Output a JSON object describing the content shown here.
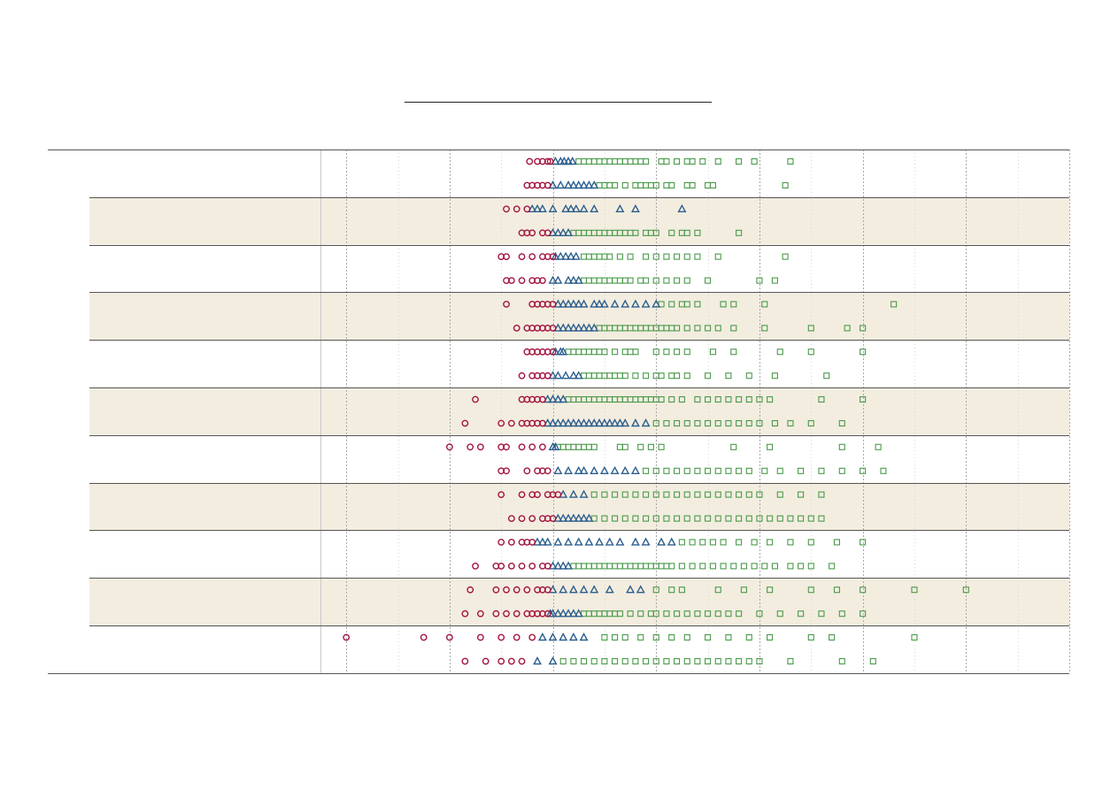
{
  "chart_data": {
    "type": "scatter",
    "title": "",
    "xlabel": "",
    "ylabel": "",
    "xlim": [
      -4.5,
      10
    ],
    "x_grid_major": [
      -4,
      -2,
      0,
      2,
      4,
      6,
      8,
      10
    ],
    "x_grid_minor": [
      -3,
      -1,
      1,
      3,
      5,
      7,
      9
    ],
    "grid": true,
    "legend": "none",
    "colors": {
      "circle": "#a3133d",
      "triangle": "#2c5f8e",
      "square": "#4a9a4a",
      "band": "#f3ede0",
      "grid": "#a8a8a8"
    },
    "group_names": [
      "",
      "",
      "",
      "",
      "",
      "",
      "",
      "",
      "",
      "",
      ""
    ],
    "groups": [
      {
        "row_labels": [
          "",
          ""
        ],
        "rows": [
          {
            "circle": [
              -0.45,
              -0.3,
              -0.2,
              -0.1,
              -0.05
            ],
            "triangle": [
              0.05,
              0.15,
              0.22,
              0.3,
              0.38
            ],
            "square": [
              0.5,
              0.6,
              0.7,
              0.8,
              0.9,
              1.0,
              1.1,
              1.2,
              1.3,
              1.4,
              1.5,
              1.6,
              1.7,
              1.8,
              2.1,
              2.2,
              2.4,
              2.6,
              2.7,
              2.9,
              3.2,
              3.6,
              3.9,
              4.6
            ]
          },
          {
            "circle": [
              -0.5,
              -0.4,
              -0.3,
              -0.2,
              -0.1
            ],
            "triangle": [
              0.0,
              0.15,
              0.3,
              0.4,
              0.5,
              0.6,
              0.7,
              0.8
            ],
            "square": [
              0.9,
              1.0,
              1.1,
              1.2,
              1.4,
              1.6,
              1.7,
              1.8,
              1.9,
              2.0,
              2.2,
              2.3,
              2.6,
              2.7,
              3.0,
              3.1,
              4.5
            ]
          }
        ]
      },
      {
        "row_labels": [
          "",
          ""
        ],
        "rows": [
          {
            "circle": [
              -0.9,
              -0.7,
              -0.5
            ],
            "triangle": [
              -0.4,
              -0.3,
              -0.2,
              0.0,
              0.25,
              0.35,
              0.45,
              0.6,
              0.8,
              1.3,
              1.6,
              2.5
            ],
            "square": []
          },
          {
            "circle": [
              -0.6,
              -0.5,
              -0.4,
              -0.2,
              -0.1
            ],
            "triangle": [
              0.0,
              0.1,
              0.2,
              0.3
            ],
            "square": [
              0.4,
              0.5,
              0.6,
              0.7,
              0.8,
              0.9,
              1.0,
              1.1,
              1.2,
              1.3,
              1.4,
              1.5,
              1.6,
              1.8,
              1.9,
              2.0,
              2.3,
              2.5,
              2.6,
              2.8,
              3.6
            ]
          }
        ]
      },
      {
        "row_labels": [
          "",
          ""
        ],
        "rows": [
          {
            "circle": [
              -1.0,
              -0.9,
              -0.6,
              -0.4,
              -0.2,
              -0.1,
              0.0
            ],
            "triangle": [
              0.05,
              0.15,
              0.25,
              0.35,
              0.45
            ],
            "square": [
              0.6,
              0.7,
              0.8,
              0.9,
              1.0,
              1.1,
              1.3,
              1.5,
              1.8,
              2.0,
              2.2,
              2.4,
              2.6,
              2.8,
              3.2,
              4.5
            ]
          },
          {
            "circle": [
              -0.9,
              -0.8,
              -0.6,
              -0.4,
              -0.3,
              -0.2
            ],
            "triangle": [
              0.0,
              0.1,
              0.3,
              0.4,
              0.5
            ],
            "square": [
              0.6,
              0.7,
              0.8,
              0.9,
              1.0,
              1.1,
              1.2,
              1.3,
              1.4,
              1.5,
              1.7,
              1.8,
              2.0,
              2.2,
              2.4,
              2.6,
              3.0,
              4.0,
              4.3
            ]
          }
        ]
      },
      {
        "row_labels": [
          "",
          ""
        ],
        "rows": [
          {
            "circle": [
              -0.9,
              -0.4,
              -0.3,
              -0.2,
              -0.1,
              0.0
            ],
            "triangle": [
              0.1,
              0.2,
              0.3,
              0.4,
              0.5,
              0.6,
              0.8,
              0.9,
              1.0,
              1.2,
              1.4,
              1.6,
              1.8,
              2.0
            ],
            "square": [
              2.1,
              2.3,
              2.5,
              2.6,
              2.8,
              3.3,
              3.5,
              4.1,
              6.6
            ]
          },
          {
            "circle": [
              -0.7,
              -0.5,
              -0.4,
              -0.3,
              -0.2,
              -0.1,
              0.0
            ],
            "triangle": [
              0.1,
              0.2,
              0.3,
              0.4,
              0.5,
              0.6,
              0.7,
              0.8
            ],
            "square": [
              0.9,
              1.0,
              1.1,
              1.2,
              1.3,
              1.4,
              1.5,
              1.6,
              1.7,
              1.8,
              1.9,
              2.0,
              2.1,
              2.2,
              2.3,
              2.4,
              2.6,
              2.8,
              3.0,
              3.2,
              3.5,
              4.1,
              5.0,
              5.7,
              6.0
            ]
          }
        ]
      },
      {
        "row_labels": [
          "",
          ""
        ],
        "rows": [
          {
            "circle": [
              -0.5,
              -0.4,
              -0.3,
              -0.2,
              -0.1,
              0.0
            ],
            "triangle": [
              0.05,
              0.15,
              0.2
            ],
            "square": [
              0.3,
              0.4,
              0.5,
              0.6,
              0.7,
              0.8,
              0.9,
              1.0,
              1.2,
              1.4,
              1.5,
              1.6,
              2.0,
              2.2,
              2.4,
              2.6,
              3.1,
              3.5,
              4.4,
              5.0,
              6.0
            ]
          },
          {
            "circle": [
              -0.6,
              -0.4,
              -0.3,
              -0.2,
              -0.1
            ],
            "triangle": [
              0.0,
              0.1,
              0.25,
              0.4,
              0.5
            ],
            "square": [
              0.6,
              0.7,
              0.8,
              0.9,
              1.0,
              1.1,
              1.2,
              1.3,
              1.4,
              1.6,
              1.8,
              2.0,
              2.1,
              2.3,
              2.4,
              2.6,
              3.0,
              3.4,
              3.8,
              4.3,
              5.3
            ]
          }
        ]
      },
      {
        "row_labels": [
          "",
          ""
        ],
        "rows": [
          {
            "circle": [
              -1.5,
              -0.6,
              -0.5,
              -0.4,
              -0.3,
              -0.2
            ],
            "triangle": [
              -0.1,
              0.0,
              0.1,
              0.2
            ],
            "square": [
              0.3,
              0.4,
              0.5,
              0.6,
              0.7,
              0.8,
              0.9,
              1.0,
              1.1,
              1.2,
              1.3,
              1.4,
              1.5,
              1.6,
              1.7,
              1.8,
              1.9,
              2.0,
              2.1,
              2.3,
              2.5,
              2.8,
              3.0,
              3.2,
              3.4,
              3.6,
              3.8,
              4.0,
              4.2,
              5.2,
              6.0
            ]
          },
          {
            "circle": [
              -1.7,
              -1.0,
              -0.8,
              -0.6,
              -0.5,
              -0.4,
              -0.3,
              -0.2
            ],
            "triangle": [
              -0.1,
              0.0,
              0.1,
              0.2,
              0.3,
              0.4,
              0.5,
              0.6,
              0.7,
              0.8,
              0.9,
              1.0,
              1.1,
              1.2,
              1.3,
              1.4,
              1.6,
              1.8
            ],
            "square": [
              2.0,
              2.2,
              2.4,
              2.6,
              2.8,
              3.0,
              3.2,
              3.4,
              3.6,
              3.8,
              4.0,
              4.3,
              4.6,
              5.0,
              5.6
            ]
          }
        ]
      },
      {
        "row_labels": [
          "",
          ""
        ],
        "rows": [
          {
            "circle": [
              -2.0,
              -1.6,
              -1.4,
              -1.0,
              -0.9,
              -0.6,
              -0.4,
              -0.2
            ],
            "triangle": [
              0.0,
              0.05
            ],
            "square": [
              0.1,
              0.2,
              0.3,
              0.4,
              0.5,
              0.6,
              0.7,
              0.8,
              1.3,
              1.4,
              1.7,
              1.9,
              2.1,
              3.5,
              4.2,
              5.6,
              6.3
            ]
          },
          {
            "circle": [
              -1.0,
              -0.9,
              -0.5,
              -0.3,
              -0.2,
              -0.1
            ],
            "triangle": [
              0.1,
              0.3,
              0.5,
              0.6,
              0.8,
              1.0,
              1.2,
              1.4,
              1.6
            ],
            "square": [
              1.8,
              2.0,
              2.2,
              2.4,
              2.6,
              2.8,
              3.0,
              3.2,
              3.4,
              3.6,
              3.8,
              4.1,
              4.4,
              4.8,
              5.2,
              5.6,
              6.0,
              6.4
            ]
          }
        ]
      },
      {
        "row_labels": [
          "",
          ""
        ],
        "rows": [
          {
            "circle": [
              -1.0,
              -0.6,
              -0.4,
              -0.3,
              -0.1,
              0.0,
              0.1
            ],
            "triangle": [
              0.2,
              0.4,
              0.6
            ],
            "square": [
              0.8,
              1.0,
              1.2,
              1.4,
              1.6,
              1.8,
              2.0,
              2.2,
              2.4,
              2.6,
              2.8,
              3.0,
              3.2,
              3.4,
              3.6,
              3.8,
              4.0,
              4.4,
              4.8,
              5.2
            ]
          },
          {
            "circle": [
              -0.8,
              -0.6,
              -0.4,
              -0.2,
              -0.1,
              0.0
            ],
            "triangle": [
              0.1,
              0.2,
              0.3,
              0.4,
              0.5,
              0.6,
              0.7
            ],
            "square": [
              0.8,
              1.0,
              1.2,
              1.4,
              1.6,
              1.8,
              2.0,
              2.2,
              2.4,
              2.6,
              2.8,
              3.0,
              3.2,
              3.4,
              3.6,
              3.8,
              4.0,
              4.2,
              4.4,
              4.6,
              4.8,
              5.0,
              5.2
            ]
          }
        ]
      },
      {
        "row_labels": [
          "",
          ""
        ],
        "rows": [
          {
            "circle": [
              -1.0,
              -0.8,
              -0.6,
              -0.5,
              -0.4
            ],
            "triangle": [
              -0.3,
              -0.2,
              -0.1,
              0.1,
              0.3,
              0.5,
              0.7,
              0.9,
              1.1,
              1.3,
              1.6,
              1.8,
              2.1,
              2.3
            ],
            "square": [
              2.5,
              2.7,
              2.9,
              3.1,
              3.3,
              3.6,
              3.9,
              4.2,
              4.6,
              5.0,
              5.5,
              6.0
            ]
          },
          {
            "circle": [
              -1.5,
              -1.1,
              -1.0,
              -0.8,
              -0.6,
              -0.4,
              -0.2,
              -0.1
            ],
            "triangle": [
              0.0,
              0.1,
              0.2,
              0.3
            ],
            "square": [
              0.4,
              0.5,
              0.6,
              0.7,
              0.8,
              0.9,
              1.0,
              1.1,
              1.2,
              1.3,
              1.4,
              1.5,
              1.6,
              1.7,
              1.8,
              1.9,
              2.0,
              2.1,
              2.2,
              2.3,
              2.5,
              2.7,
              2.9,
              3.1,
              3.3,
              3.5,
              3.7,
              3.9,
              4.1,
              4.3,
              4.6,
              4.8,
              5.0,
              5.4
            ]
          }
        ]
      },
      {
        "row_labels": [
          "",
          ""
        ],
        "rows": [
          {
            "circle": [
              -1.6,
              -1.1,
              -0.9,
              -0.7,
              -0.5,
              -0.3,
              -0.2,
              -0.1
            ],
            "triangle": [
              0.0,
              0.2,
              0.4,
              0.6,
              0.8,
              1.1,
              1.5,
              1.7
            ],
            "square": [
              2.0,
              2.3,
              2.5,
              3.2,
              3.7,
              4.2,
              5.0,
              5.5,
              6.0,
              7.0,
              8.0
            ]
          },
          {
            "circle": [
              -1.7,
              -1.4,
              -1.1,
              -0.9,
              -0.7,
              -0.5,
              -0.4,
              -0.3,
              -0.2,
              -0.1
            ],
            "triangle": [
              -0.05,
              0.0,
              0.1,
              0.2,
              0.3,
              0.4,
              0.5
            ],
            "square": [
              0.6,
              0.7,
              0.8,
              0.9,
              1.0,
              1.1,
              1.2,
              1.3,
              1.5,
              1.7,
              1.9,
              2.0,
              2.2,
              2.4,
              2.6,
              2.8,
              3.0,
              3.2,
              3.4,
              3.6,
              4.0,
              4.4,
              4.8,
              5.2,
              5.6,
              6.0
            ]
          }
        ]
      },
      {
        "row_labels": [
          "",
          ""
        ],
        "rows": [
          {
            "circle": [
              -4.0,
              -2.5,
              -2.0,
              -1.4,
              -1.0,
              -0.7,
              -0.4
            ],
            "triangle": [
              -0.2,
              0.0,
              0.2,
              0.4,
              0.6
            ],
            "square": [
              1.0,
              1.2,
              1.4,
              1.7,
              2.0,
              2.3,
              2.6,
              3.0,
              3.4,
              3.8,
              4.2,
              5.0,
              5.4,
              7.0
            ]
          },
          {
            "circle": [
              -1.7,
              -1.3,
              -1.0,
              -0.8,
              -0.6
            ],
            "triangle": [
              -0.3,
              0.0
            ],
            "square": [
              0.2,
              0.4,
              0.6,
              0.8,
              1.0,
              1.2,
              1.4,
              1.6,
              1.8,
              2.0,
              2.2,
              2.4,
              2.6,
              2.8,
              3.0,
              3.2,
              3.4,
              3.6,
              3.8,
              4.0,
              4.6,
              5.6,
              6.2
            ]
          }
        ]
      }
    ]
  }
}
